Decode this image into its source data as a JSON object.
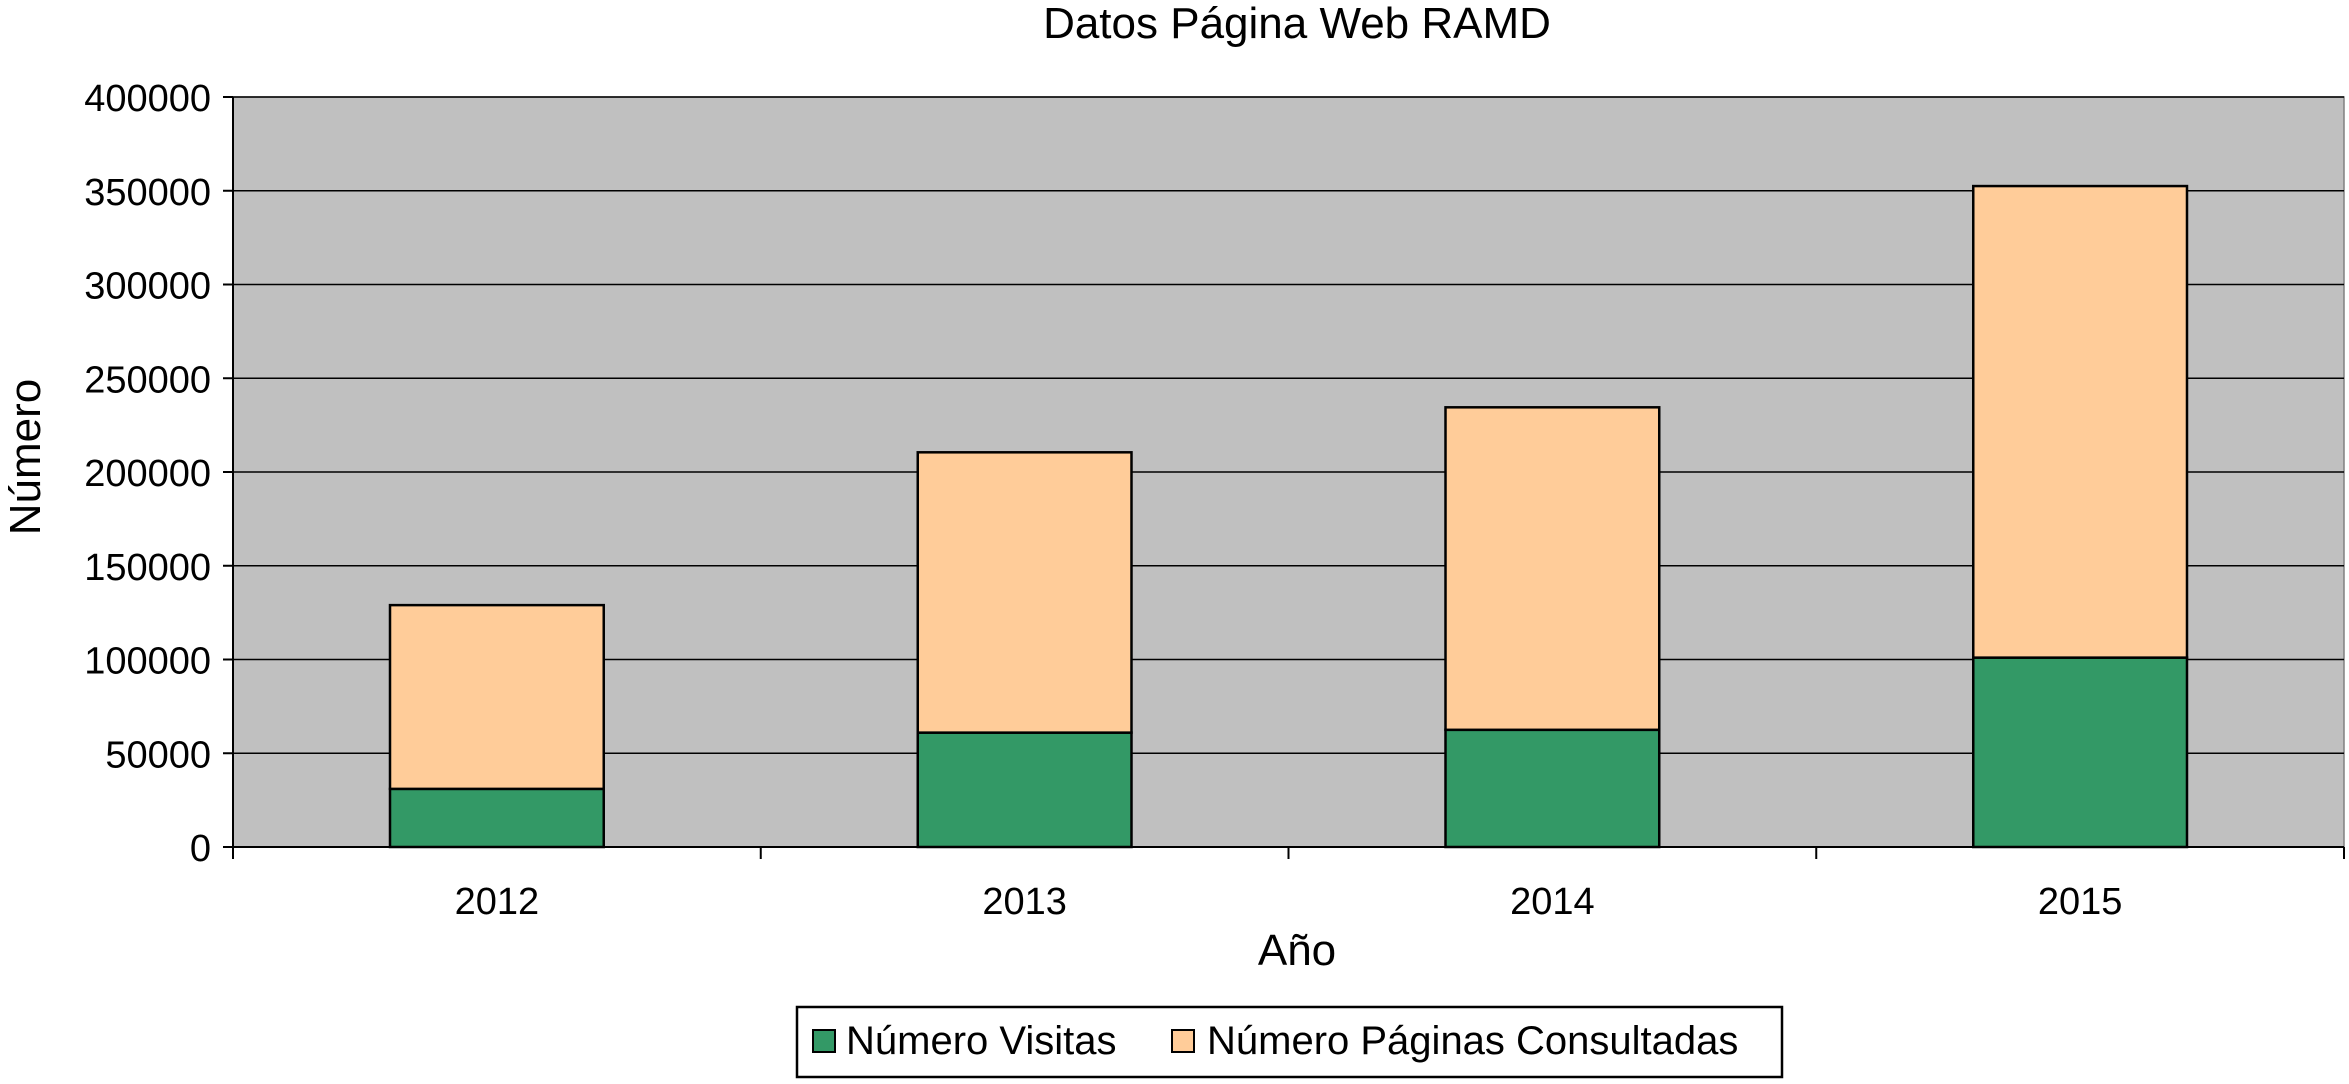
{
  "chart_data": {
    "type": "bar",
    "stacked": true,
    "title": "Datos Página Web RAMD",
    "xlabel": "Año",
    "ylabel": "Número",
    "categories": [
      "2012",
      "2013",
      "2014",
      "2015"
    ],
    "series": [
      {
        "name": "Número Visitas",
        "values": [
          31000,
          61000,
          62500,
          101000
        ],
        "color": "#339966"
      },
      {
        "name": "Número Páginas Consultadas",
        "values": [
          98000,
          149500,
          172000,
          251500
        ],
        "color": "#ffcc99"
      }
    ],
    "ylim": [
      0,
      400000
    ],
    "yticks": [
      "0",
      "50000",
      "100000",
      "150000",
      "200000",
      "250000",
      "300000",
      "350000",
      "400000"
    ],
    "plot_background": "#c0c0c0",
    "grid": true,
    "legend_position": "bottom"
  }
}
